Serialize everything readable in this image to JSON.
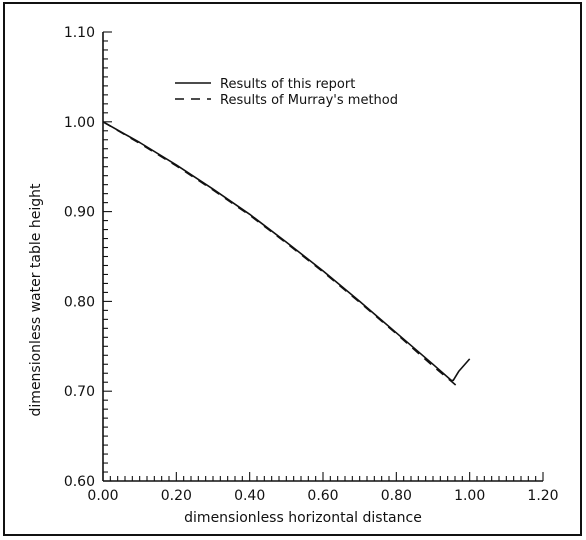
{
  "chart_data": {
    "type": "line",
    "xlabel": "dimensionless horizontal distance",
    "ylabel": "dimensionless water table height",
    "xlim": [
      0.0,
      1.2
    ],
    "ylim": [
      0.6,
      1.1
    ],
    "x_ticks": [
      "0.00",
      "0.20",
      "0.40",
      "0.60",
      "0.80",
      "1.00",
      "1.20"
    ],
    "y_ticks": [
      "0.60",
      "0.70",
      "0.80",
      "0.90",
      "1.00",
      "1.10"
    ],
    "grid": false,
    "legend_position": "top-center",
    "series": [
      {
        "name": "Results of this report",
        "style": "solid",
        "x": [
          0.0,
          0.1,
          0.2,
          0.3,
          0.4,
          0.5,
          0.6,
          0.7,
          0.8,
          0.9,
          0.95,
          0.955,
          0.97,
          1.0
        ],
        "y": [
          1.0,
          0.977,
          0.952,
          0.925,
          0.897,
          0.866,
          0.834,
          0.8,
          0.765,
          0.73,
          0.712,
          0.712,
          0.722,
          0.736
        ]
      },
      {
        "name": "Results of Murray's method",
        "style": "dashed",
        "x": [
          0.0,
          0.1,
          0.2,
          0.3,
          0.4,
          0.5,
          0.6,
          0.7,
          0.8,
          0.9,
          0.95,
          0.97
        ],
        "y": [
          1.0,
          0.976,
          0.951,
          0.924,
          0.896,
          0.865,
          0.833,
          0.799,
          0.764,
          0.728,
          0.711,
          0.704
        ]
      }
    ]
  }
}
